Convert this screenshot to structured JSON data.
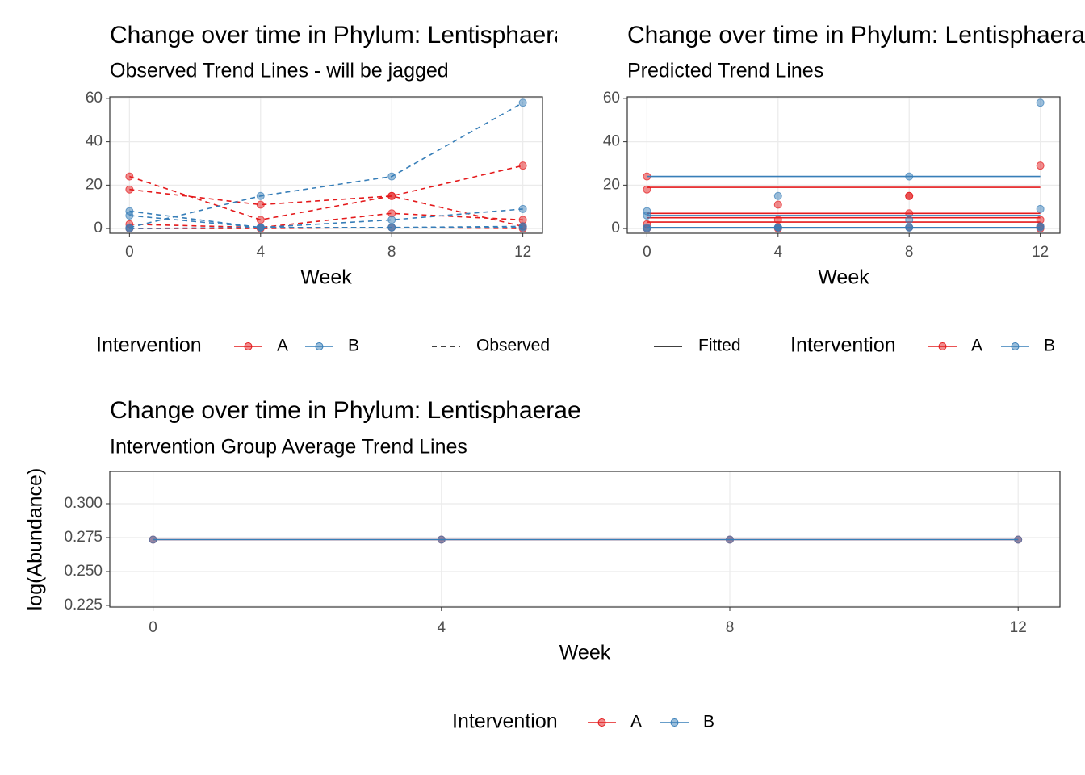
{
  "chart_data": [
    {
      "type": "line",
      "title": "Change over time in Phylum: Lentisphaerae",
      "subtitle": "Observed Trend Lines - will be jagged",
      "x_label": "Week",
      "x": [
        0,
        4,
        8,
        12
      ],
      "xlim": [
        -0.6,
        12.6
      ],
      "xticks": [
        0,
        4,
        8,
        12
      ],
      "ylim": [
        -2.2,
        60.7
      ],
      "yticks": [
        0,
        20,
        40,
        60
      ],
      "grid": true,
      "linestyle": "dashed",
      "series": [
        {
          "color": "#e41a1c",
          "values": [
            18,
            11,
            15,
            29
          ]
        },
        {
          "color": "#e41a1c",
          "values": [
            24,
            4,
            15,
            1
          ]
        },
        {
          "color": "#e41a1c",
          "values": [
            2,
            0.5,
            7,
            4
          ]
        },
        {
          "color": "#e41a1c",
          "values": [
            0,
            0,
            0.5,
            0
          ]
        },
        {
          "color": "#377eb8",
          "values": [
            0.5,
            15,
            24,
            58
          ]
        },
        {
          "color": "#377eb8",
          "values": [
            8,
            0.5,
            4,
            9
          ]
        },
        {
          "color": "#377eb8",
          "values": [
            6,
            0.5,
            0.5,
            1
          ]
        },
        {
          "color": "#377eb8",
          "values": [
            0,
            0.5,
            0.5,
            0.5
          ]
        }
      ],
      "legend": {
        "title": "Intervention",
        "entries": [
          {
            "name": "A",
            "color": "#e41a1c"
          },
          {
            "name": "B",
            "color": "#377eb8"
          }
        ],
        "linetype": "Observed"
      }
    },
    {
      "type": "fitted",
      "title": "Change over time in Phylum: Lentisphaerae",
      "subtitle": "Predicted Trend Lines",
      "x_label": "Week",
      "x": [
        0,
        4,
        8,
        12
      ],
      "xlim": [
        -0.6,
        12.6
      ],
      "xticks": [
        0,
        4,
        8,
        12
      ],
      "ylim": [
        -2.2,
        60.7
      ],
      "yticks": [
        0,
        20,
        40,
        60
      ],
      "grid": true,
      "linestyle": "solid",
      "series": [
        {
          "color": "#e41a1c",
          "values": [
            19,
            19,
            19,
            19
          ],
          "observed": [
            18,
            11,
            15,
            29
          ]
        },
        {
          "color": "#e41a1c",
          "values": [
            7,
            7,
            7,
            7
          ],
          "observed": [
            24,
            4,
            15,
            1
          ]
        },
        {
          "color": "#e41a1c",
          "values": [
            5,
            5,
            5,
            5
          ],
          "observed": [
            2,
            0.5,
            7,
            4
          ]
        },
        {
          "color": "#e41a1c",
          "values": [
            3,
            3,
            3,
            3
          ],
          "observed": [
            0,
            0,
            0.5,
            0
          ]
        },
        {
          "color": "#377eb8",
          "values": [
            24,
            24,
            24,
            24
          ],
          "observed": [
            0.5,
            15,
            24,
            58
          ]
        },
        {
          "color": "#377eb8",
          "values": [
            6,
            6,
            6,
            6
          ],
          "observed": [
            8,
            0.5,
            4,
            9
          ]
        },
        {
          "color": "#377eb8",
          "values": [
            0.5,
            0.5,
            0.5,
            0.5
          ],
          "observed": [
            6,
            0.5,
            0.5,
            1
          ]
        },
        {
          "color": "#377eb8",
          "values": [
            0.3,
            0.3,
            0.3,
            0.3
          ],
          "observed": [
            0,
            0.5,
            0.5,
            0.5
          ]
        }
      ],
      "legend": {
        "title": "Intervention",
        "entries": [
          {
            "name": "A",
            "color": "#e41a1c"
          },
          {
            "name": "B",
            "color": "#377eb8"
          }
        ],
        "linetype": "Fitted"
      }
    },
    {
      "type": "line",
      "title": "Change over time in Phylum: Lentisphaerae",
      "subtitle": "Intervention Group Average Trend Lines",
      "x_label": "Week",
      "y_label": "log(Abundance)",
      "x": [
        0,
        4,
        8,
        12
      ],
      "xlim": [
        -0.6,
        12.58
      ],
      "xticks": [
        0,
        4,
        8,
        12
      ],
      "ylim": [
        0.2238,
        0.3238
      ],
      "yticks": [
        0.225,
        {
          "value": 0.25,
          "label": "0.250"
        },
        0.275,
        {
          "value": 0.3,
          "label": "0.300"
        }
      ],
      "grid": true,
      "linestyle": "solid",
      "legend_title": "Intervention",
      "series": [
        {
          "name": "A",
          "color": "#e41a1c",
          "values": [
            0.2735,
            0.2735,
            0.2735,
            0.2735
          ]
        },
        {
          "name": "B",
          "color": "#377eb8",
          "values": [
            0.2735,
            0.2735,
            0.2735,
            0.2735
          ]
        }
      ]
    }
  ]
}
